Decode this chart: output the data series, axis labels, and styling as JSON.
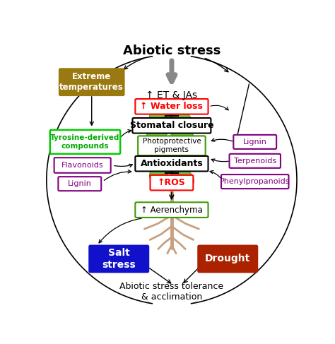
{
  "title": "Abiotic stress",
  "subtitle": "Abiotic stress tolerance\n& acclimation",
  "et_jas_label": "↑ ET & JAs",
  "bg_color": "white",
  "arrow_gray": "#666666",
  "plant_green": "#3a9a00",
  "plant_dark": "#2a7000",
  "root_color": "#c8a080",
  "center_boxes": [
    {
      "label": "↑ Water loss",
      "border": "red",
      "text_color": "red",
      "bold": true,
      "fontsize": 9
    },
    {
      "label": "Stomatal closure",
      "border": "black",
      "text_color": "black",
      "bold": true,
      "fontsize": 9
    },
    {
      "label": "Photoprotective\npigments",
      "border": "#3a9a00",
      "text_color": "black",
      "bold": false,
      "fontsize": 7.5
    },
    {
      "label": "Antioxidants",
      "border": "black",
      "text_color": "black",
      "bold": true,
      "fontsize": 9
    },
    {
      "label": "↑ROS",
      "border": "red",
      "text_color": "red",
      "bold": true,
      "fontsize": 9
    },
    {
      "label": "↑ Aerenchyma",
      "border": "#3a9a00",
      "text_color": "black",
      "bold": false,
      "fontsize": 8.5
    }
  ],
  "ext_temp": {
    "label": "Extreme\ntemperatures",
    "bg": "#9a7a10",
    "text_color": "white"
  },
  "left_boxes": [
    {
      "label": "Tyrosine-derived\ncompounds",
      "border": "#00cc00",
      "text_color": "#00aa00",
      "bold": true
    },
    {
      "label": "Flavonoids",
      "border": "purple",
      "text_color": "purple",
      "bold": false
    },
    {
      "label": "Lignin",
      "border": "purple",
      "text_color": "purple",
      "bold": false
    }
  ],
  "right_boxes": [
    {
      "label": "Lignin",
      "border": "purple",
      "text_color": "purple",
      "bold": false
    },
    {
      "label": "Terpenoids",
      "border": "purple",
      "text_color": "purple",
      "bold": false
    },
    {
      "label": "Phenylpropanoids",
      "border": "purple",
      "text_color": "purple",
      "bold": false
    }
  ],
  "salt": {
    "label": "Salt\nstress",
    "bg": "#1111cc",
    "text_color": "white"
  },
  "drought": {
    "label": "Drought",
    "bg": "#aa2200",
    "text_color": "white"
  }
}
